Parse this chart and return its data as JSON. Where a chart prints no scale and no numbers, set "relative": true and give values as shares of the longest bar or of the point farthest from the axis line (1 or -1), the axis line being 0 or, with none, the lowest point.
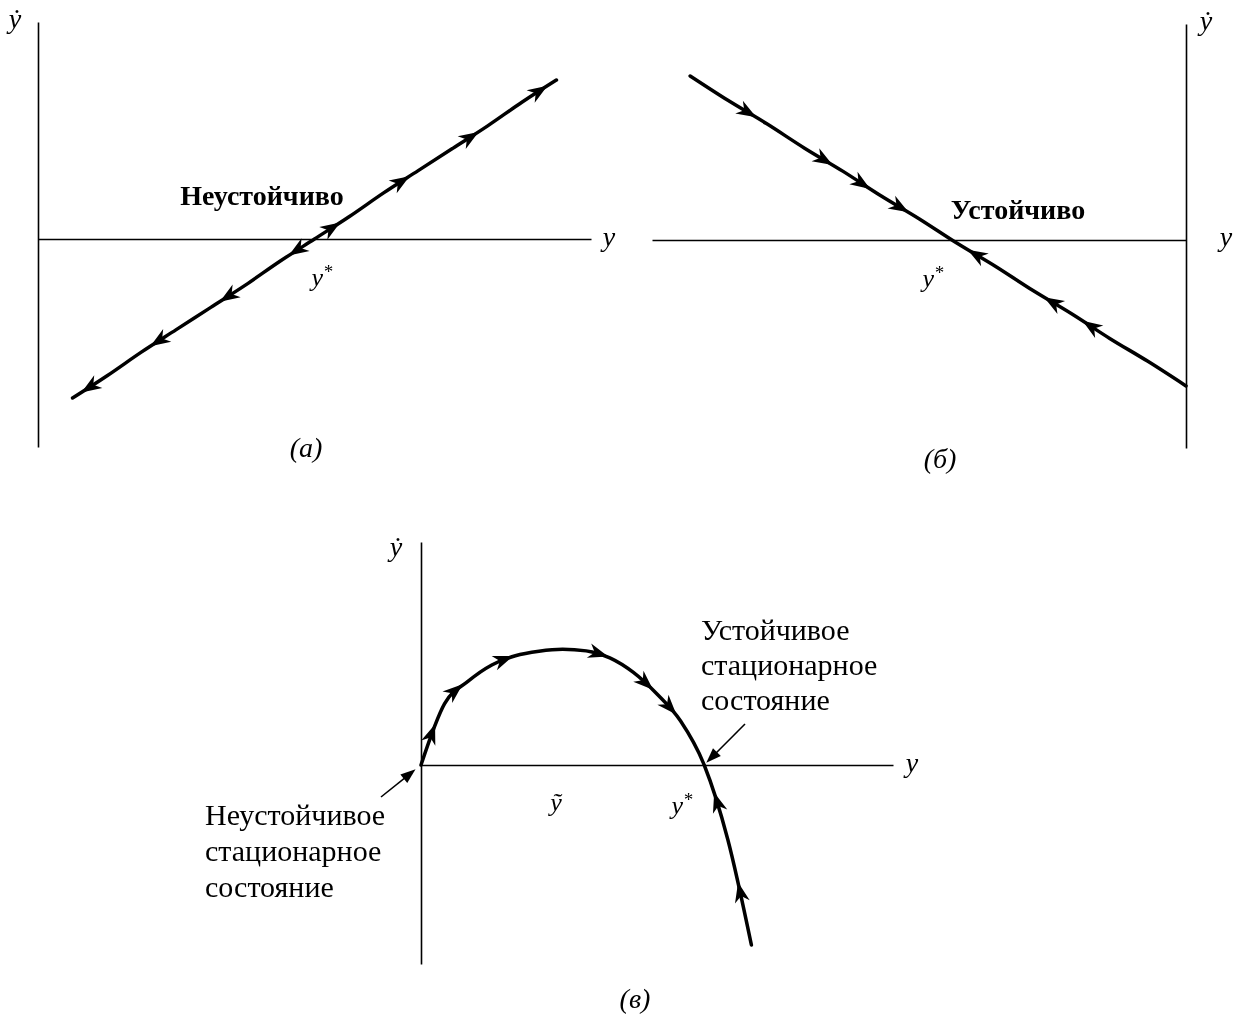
{
  "chart_data": [
    {
      "type": "line",
      "relative": true,
      "title": "(а)",
      "xlabel": "y",
      "ylabel": "ẏ",
      "categories": [
        null,
        null,
        null,
        null,
        null,
        null,
        null,
        null,
        null,
        null,
        null,
        null,
        null,
        null,
        null,
        null,
        null
      ],
      "series": [
        {
          "color": "#000000",
          "values": [
            null,
            -1,
            -0.86,
            -0.71,
            -0.57,
            -0.43,
            -0.29,
            -0.14,
            0,
            0.14,
            0.29,
            0.43,
            0.57,
            0.71,
            0.86,
            1,
            null
          ]
        }
      ],
      "annotations": [
        "Неустойчиво",
        "y$^{*}$"
      ]
    },
    {
      "type": "line",
      "relative": true,
      "title": "(б)",
      "xlabel": "y",
      "ylabel": "ẏ",
      "categories": [
        null,
        null,
        null,
        null,
        null,
        null,
        null,
        null,
        null,
        null,
        null,
        null,
        null,
        null,
        null
      ],
      "series": [
        {
          "color": "#000000",
          "values": [
            null,
            1,
            0.85,
            0.71,
            0.56,
            0.42,
            0.27,
            0.13,
            -0.02,
            -0.16,
            -0.31,
            -0.45,
            -0.6,
            -0.74,
            -0.89
          ]
        }
      ],
      "annotations": [
        "Устойчиво",
        "y$^{*}$"
      ]
    },
    {
      "type": "line",
      "relative": true,
      "title": "(в)",
      "xlabel": "y",
      "ylabel": "ẏ",
      "categories": [
        null,
        null,
        null,
        null,
        null,
        null,
        null,
        null,
        null,
        null,
        null,
        null,
        null,
        null,
        null,
        null,
        null,
        null,
        null,
        null,
        null
      ],
      "series": [
        {
          "color": "#000000",
          "values": [
            0,
            0.341,
            0.466,
            0.556,
            0.607,
            0.632,
            0.643,
            0.634,
            0.595,
            0.514,
            0.394,
            0.244,
            0,
            -0.414,
            -1,
            null,
            null,
            null,
            null,
            null,
            null
          ]
        }
      ],
      "annotations": [
        "Устойчивое стационарное состояние",
        "Неустойчивое стационарное состояние",
        "ỹ",
        "y$^{*}$"
      ]
    }
  ]
}
